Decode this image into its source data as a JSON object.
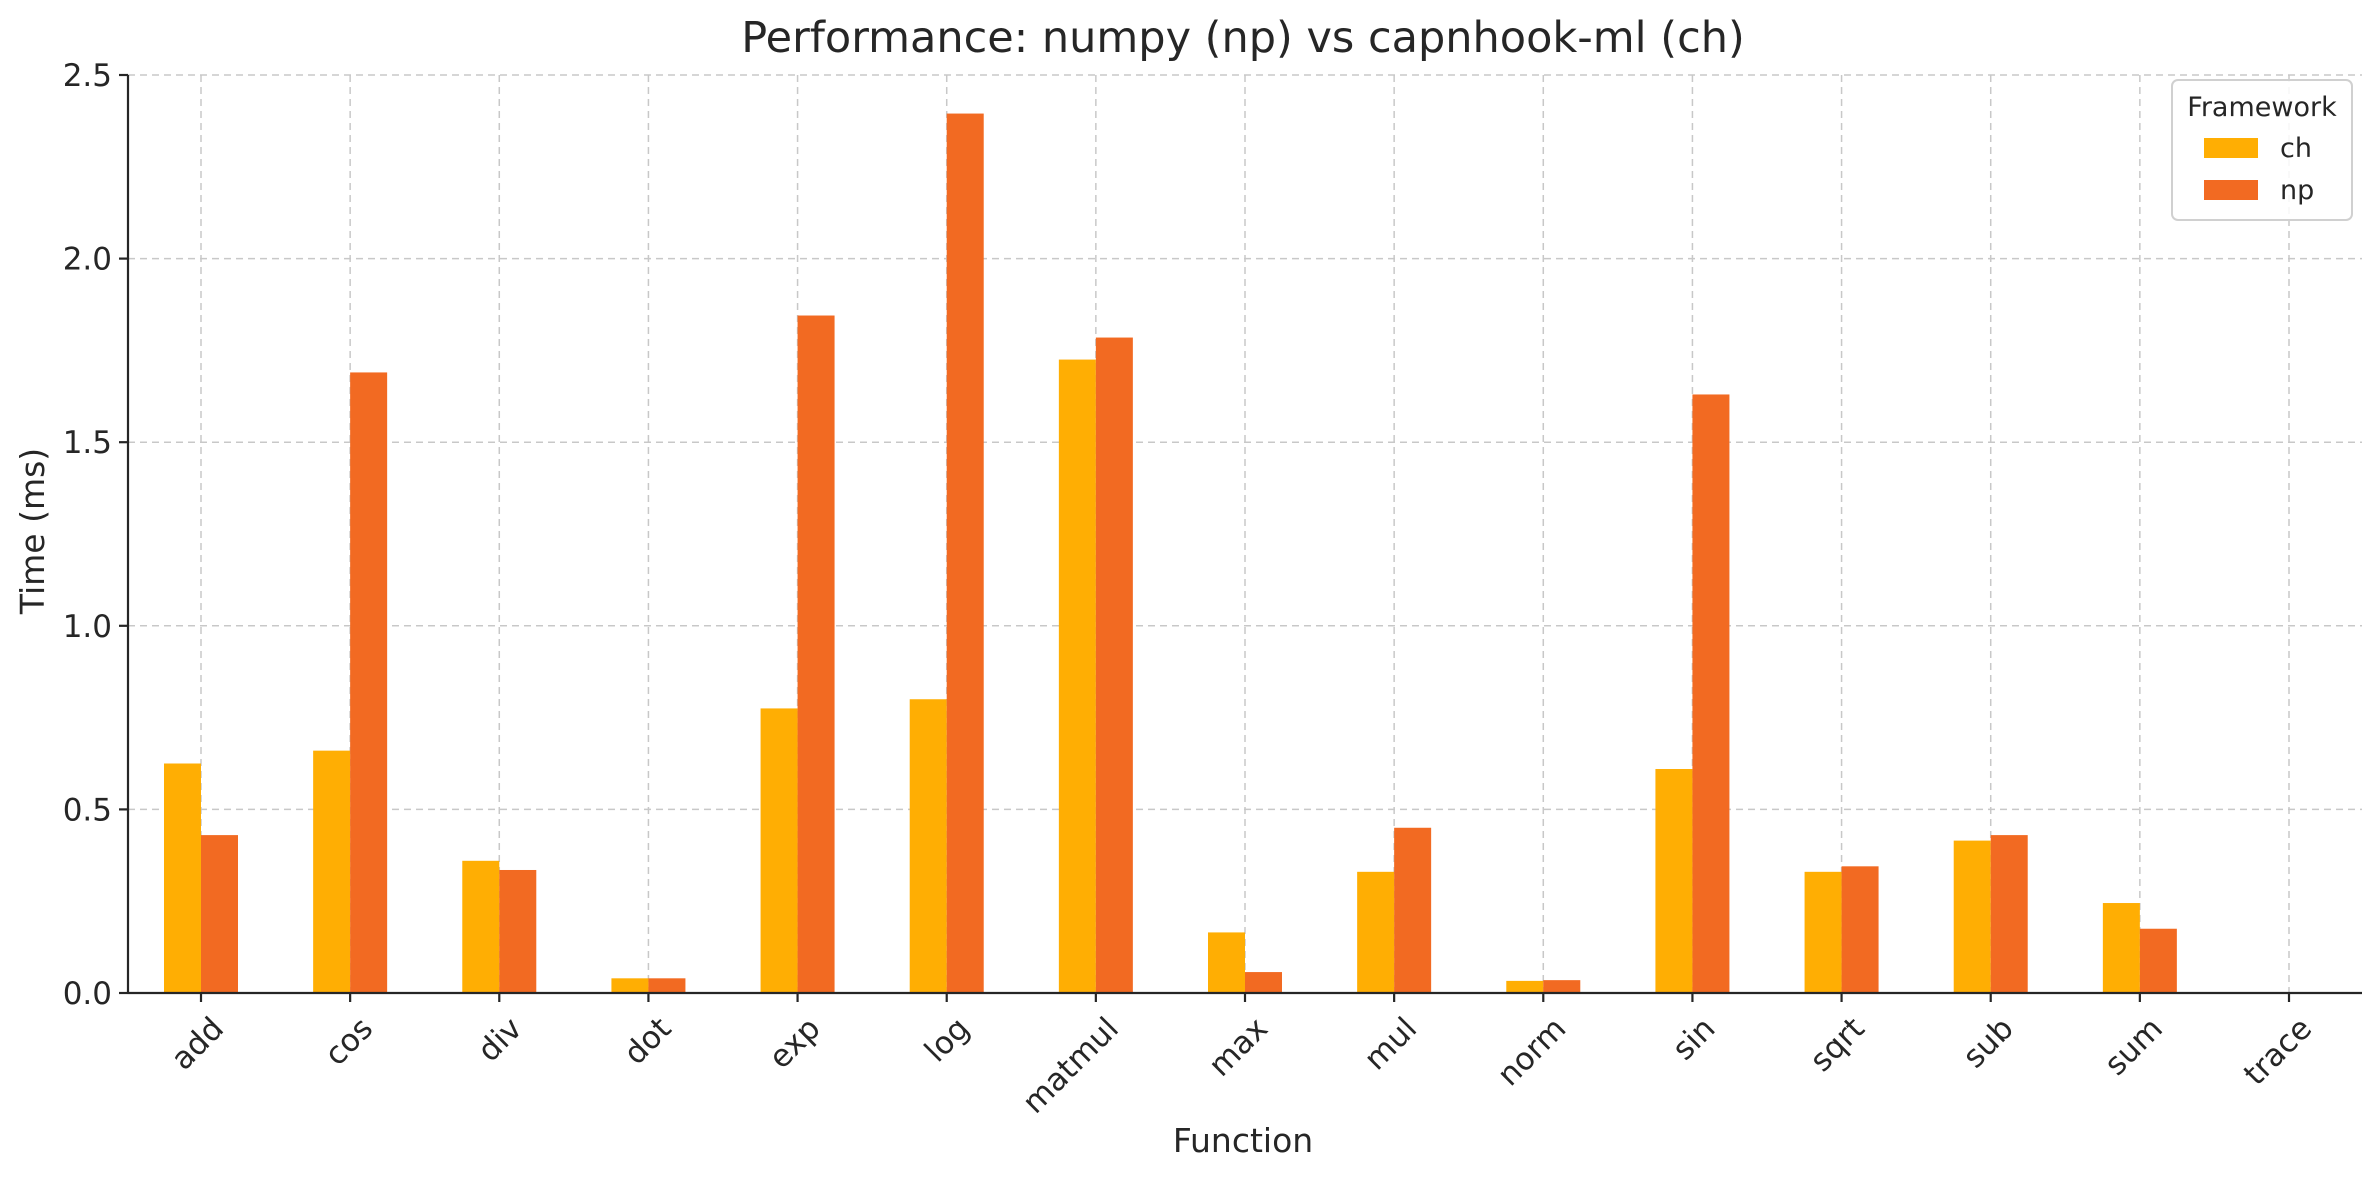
{
  "chart_data": {
    "type": "bar",
    "title": "Performance: numpy (np) vs capnhook-ml (ch)",
    "xlabel": "Function",
    "ylabel": "Time (ms)",
    "ylim": [
      0,
      2.5
    ],
    "yticks": [
      "0.0",
      "0.5",
      "1.0",
      "1.5",
      "2.0",
      "2.5"
    ],
    "grid": true,
    "legend": {
      "title": "Framework",
      "placement": "top-right"
    },
    "categories": [
      "add",
      "cos",
      "div",
      "dot",
      "exp",
      "log",
      "matmul",
      "max",
      "mul",
      "norm",
      "sin",
      "sqrt",
      "sub",
      "sum",
      "trace"
    ],
    "series": [
      {
        "name": "ch",
        "color": "#FFAE03",
        "values": [
          0.625,
          0.66,
          0.36,
          0.04,
          0.775,
          0.8,
          1.725,
          0.165,
          0.33,
          0.033,
          0.61,
          0.33,
          0.415,
          0.245,
          0.0
        ]
      },
      {
        "name": "np",
        "color": "#F26A22",
        "values": [
          0.43,
          1.69,
          0.335,
          0.04,
          1.845,
          2.395,
          1.785,
          0.057,
          0.45,
          0.035,
          1.63,
          0.345,
          0.43,
          0.175,
          0.0
        ]
      }
    ]
  }
}
